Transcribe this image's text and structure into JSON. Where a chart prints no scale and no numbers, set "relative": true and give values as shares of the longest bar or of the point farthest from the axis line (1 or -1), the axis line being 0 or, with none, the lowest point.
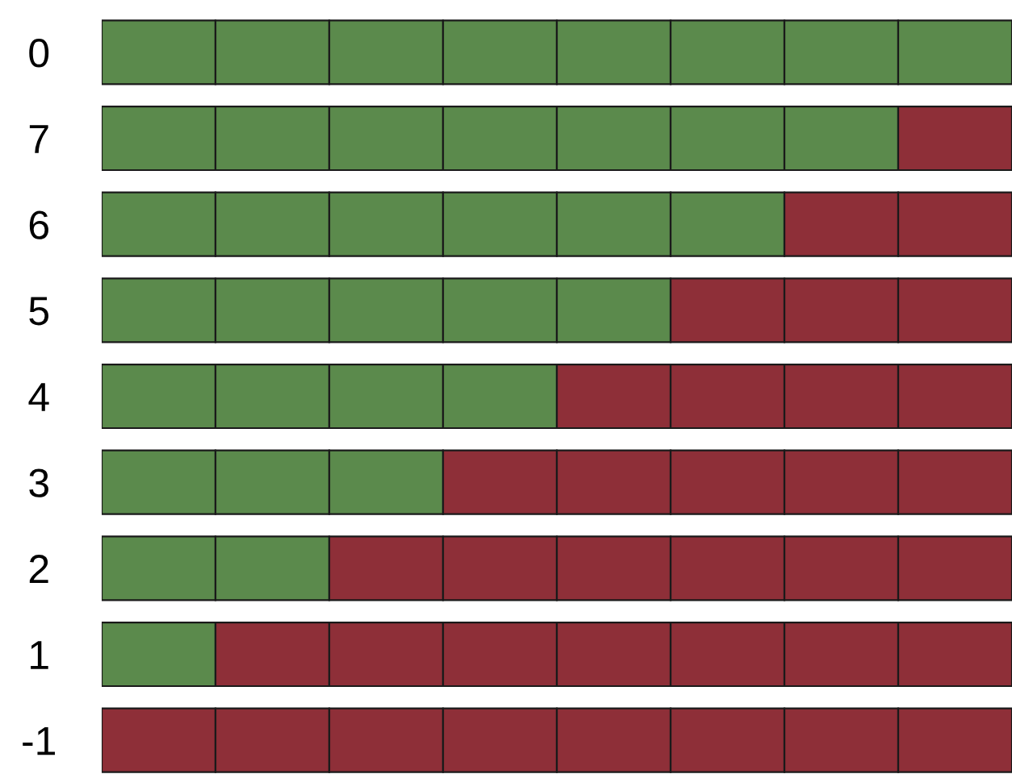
{
  "chart_data": {
    "type": "bar",
    "orientation": "horizontal",
    "stacked": true,
    "relative": true,
    "tick_labels": "y",
    "categories": [
      "0",
      "7",
      "6",
      "5",
      "4",
      "3",
      "2",
      "1",
      "-1"
    ],
    "series": [
      {
        "values": [
          0.125,
          0.125,
          0.125,
          0.125,
          0.125,
          0.125,
          0.125,
          0.125,
          0.125
        ],
        "colors": [
          "#5b8a4c",
          "#5b8a4c",
          "#5b8a4c",
          "#5b8a4c",
          "#5b8a4c",
          "#5b8a4c",
          "#5b8a4c",
          "#5b8a4c",
          "#8e2f38"
        ]
      },
      {
        "values": [
          0.125,
          0.125,
          0.125,
          0.125,
          0.125,
          0.125,
          0.125,
          0.125,
          0.125
        ],
        "colors": [
          "#5b8a4c",
          "#5b8a4c",
          "#5b8a4c",
          "#5b8a4c",
          "#5b8a4c",
          "#5b8a4c",
          "#5b8a4c",
          "#8e2f38",
          "#8e2f38"
        ]
      },
      {
        "values": [
          0.125,
          0.125,
          0.125,
          0.125,
          0.125,
          0.125,
          0.125,
          0.125,
          0.125
        ],
        "colors": [
          "#5b8a4c",
          "#5b8a4c",
          "#5b8a4c",
          "#5b8a4c",
          "#5b8a4c",
          "#5b8a4c",
          "#8e2f38",
          "#8e2f38",
          "#8e2f38"
        ]
      },
      {
        "values": [
          0.125,
          0.125,
          0.125,
          0.125,
          0.125,
          0.125,
          0.125,
          0.125,
          0.125
        ],
        "colors": [
          "#5b8a4c",
          "#5b8a4c",
          "#5b8a4c",
          "#5b8a4c",
          "#5b8a4c",
          "#8e2f38",
          "#8e2f38",
          "#8e2f38",
          "#8e2f38"
        ]
      },
      {
        "values": [
          0.125,
          0.125,
          0.125,
          0.125,
          0.125,
          0.125,
          0.125,
          0.125,
          0.125
        ],
        "colors": [
          "#5b8a4c",
          "#5b8a4c",
          "#5b8a4c",
          "#5b8a4c",
          "#8e2f38",
          "#8e2f38",
          "#8e2f38",
          "#8e2f38",
          "#8e2f38"
        ]
      },
      {
        "values": [
          0.125,
          0.125,
          0.125,
          0.125,
          0.125,
          0.125,
          0.125,
          0.125,
          0.125
        ],
        "colors": [
          "#5b8a4c",
          "#5b8a4c",
          "#5b8a4c",
          "#8e2f38",
          "#8e2f38",
          "#8e2f38",
          "#8e2f38",
          "#8e2f38",
          "#8e2f38"
        ]
      },
      {
        "values": [
          0.125,
          0.125,
          0.125,
          0.125,
          0.125,
          0.125,
          0.125,
          0.125,
          0.125
        ],
        "colors": [
          "#5b8a4c",
          "#5b8a4c",
          "#8e2f38",
          "#8e2f38",
          "#8e2f38",
          "#8e2f38",
          "#8e2f38",
          "#8e2f38",
          "#8e2f38"
        ]
      },
      {
        "values": [
          0.125,
          0.125,
          0.125,
          0.125,
          0.125,
          0.125,
          0.125,
          0.125,
          0.125
        ],
        "colors": [
          "#5b8a4c",
          "#8e2f38",
          "#8e2f38",
          "#8e2f38",
          "#8e2f38",
          "#8e2f38",
          "#8e2f38",
          "#8e2f38",
          "#8e2f38"
        ]
      }
    ]
  }
}
